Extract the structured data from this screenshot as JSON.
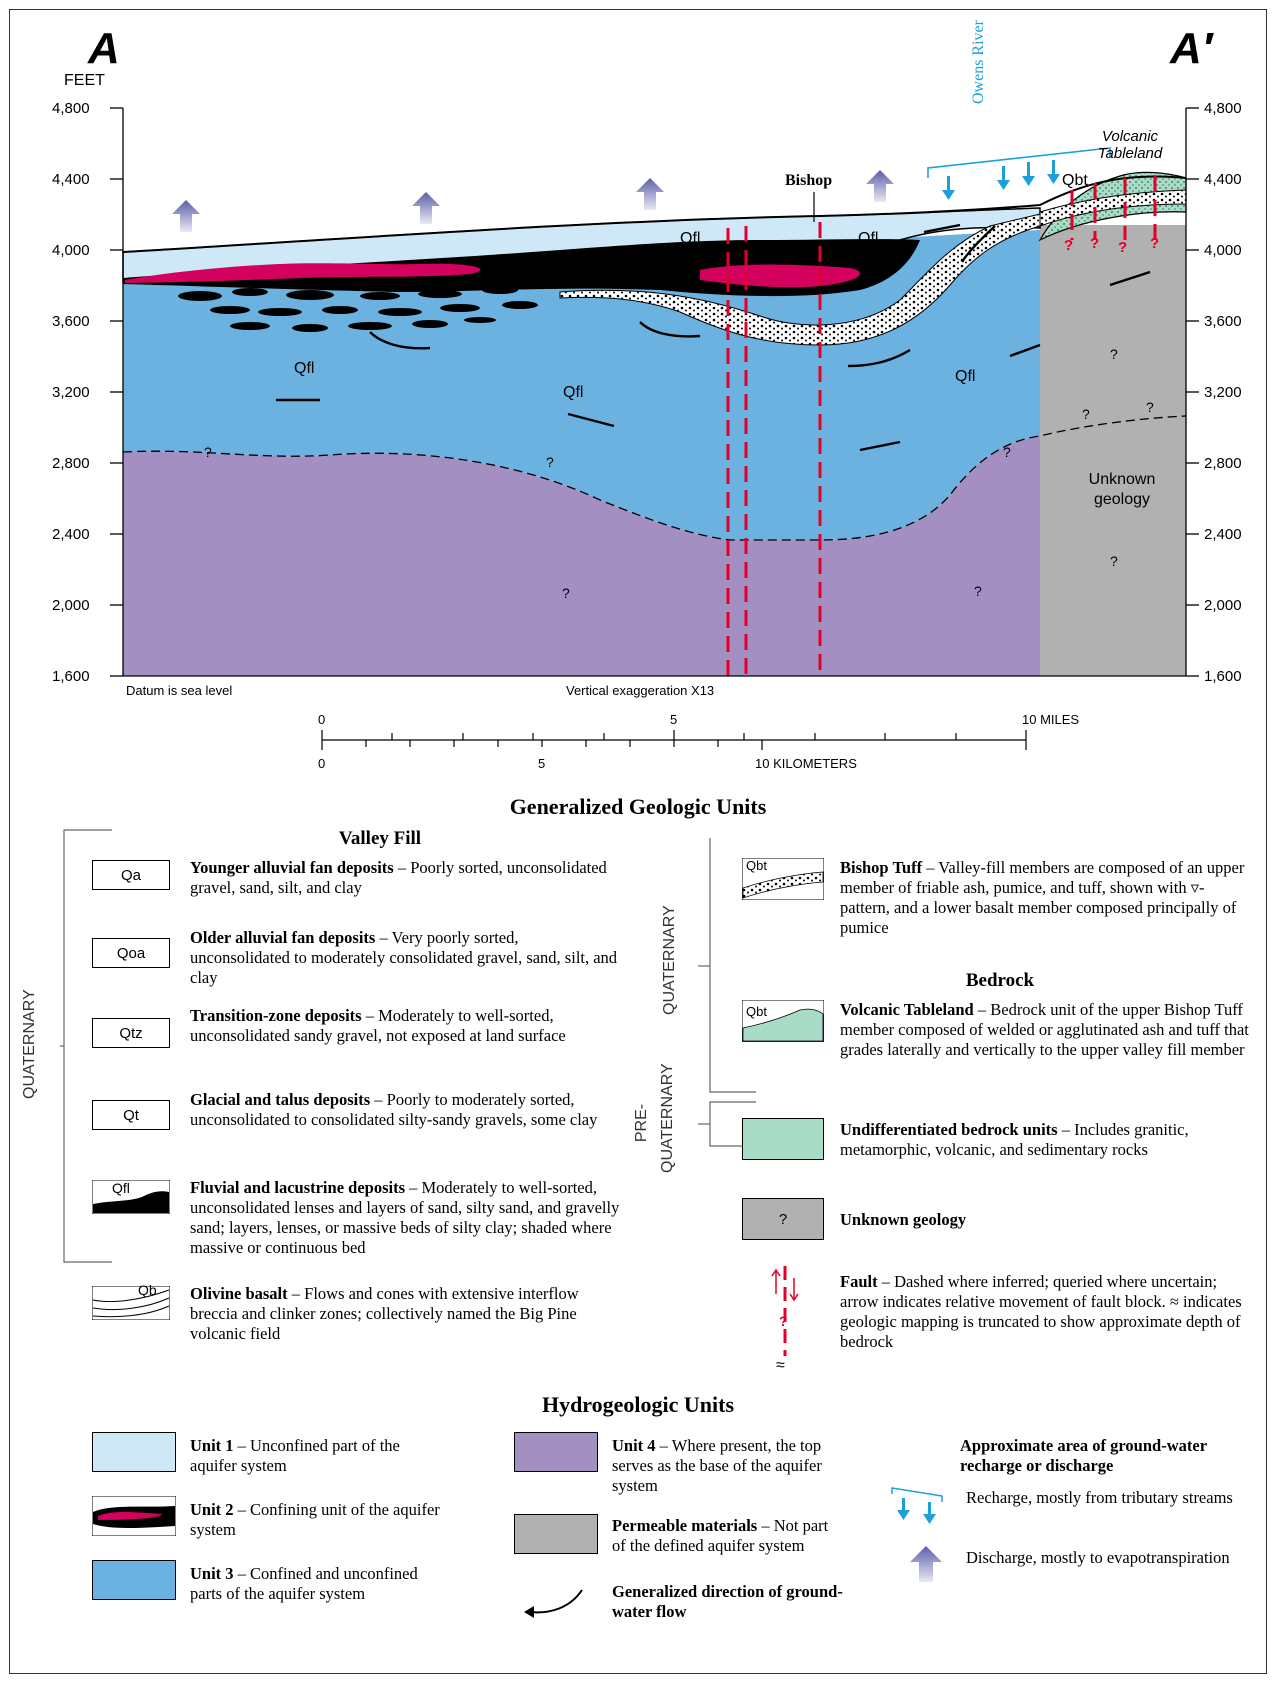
{
  "section": {
    "left_label": "A",
    "right_label": "A′",
    "axis_unit": "FEET",
    "left_ticks": [
      "4,800",
      "4,400",
      "4,000",
      "3,600",
      "3,200",
      "2,800",
      "2,400",
      "2,000",
      "1,600"
    ],
    "right_ticks": [
      "4,800",
      "4,400",
      "4,000",
      "3,600",
      "3,200",
      "2,800",
      "2,400",
      "2,000",
      "1,600"
    ],
    "owens_river": "Owens River",
    "volcanic_tableland": "Volcanic Tableland",
    "bishop": "Bishop",
    "qbt": "Qbt",
    "qfl": "Qfl",
    "unknown_geology": "Unknown geology",
    "query": "?",
    "datum": "Datum is sea level",
    "exaggeration": "Vertical exaggeration X13"
  },
  "scale": {
    "miles_labels": [
      "0",
      "5",
      "10 MILES"
    ],
    "km_labels": [
      "0",
      "5",
      "10 KILOMETERS"
    ]
  },
  "geologic": {
    "title": "Generalized Geologic Units",
    "valley_fill": "Valley Fill",
    "bedrock": "Bedrock",
    "quaternary": "QUATERNARY",
    "pre_quaternary_1": "PRE-",
    "pre_quaternary_2": "QUATERNARY",
    "units": [
      {
        "code": "Qa",
        "name": "Younger alluvial fan deposits",
        "text": " – Poorly sorted, unconsolidated gravel, sand, silt, and clay"
      },
      {
        "code": "Qoa",
        "name": "Older alluvial fan deposits",
        "text": " – Very poorly sorted, unconsolidated to moderately consolidated gravel, sand, silt, and clay"
      },
      {
        "code": "Qtz",
        "name": "Transition-zone deposits",
        "text": " – Moderately to well-sorted, unconsolidated sandy gravel, not exposed at land surface"
      },
      {
        "code": "Qt",
        "name": "Glacial and talus deposits",
        "text": " – Poorly to moderately sorted, unconsolidated to consolidated silty-sandy gravels, some clay"
      },
      {
        "code": "Qfl",
        "name": "Fluvial and lacustrine deposits",
        "text": " – Moderately to well-sorted, unconsolidated lenses and layers of sand, silty sand, and gravelly sand; layers, lenses, or massive beds of silty clay; shaded where massive or continuous bed"
      },
      {
        "code": "Qb",
        "name": "Olivine basalt",
        "text": " – Flows and cones with extensive interflow breccia and clinker zones; collectively named the Big Pine volcanic field"
      }
    ],
    "right_units": [
      {
        "code": "Qbt",
        "name": "Bishop Tuff",
        "text": " – Valley-fill members are composed of an upper member of friable ash, pumice, and tuff, shown with ▿-pattern, and a lower basalt member composed principally of pumice"
      },
      {
        "code": "Qbt",
        "name": "Volcanic Tableland",
        "text": " – Bedrock unit of the upper Bishop Tuff member composed of welded or agglutinated ash and tuff that grades laterally and vertically to the upper valley fill member"
      },
      {
        "code": "",
        "name": "Undifferentiated bedrock units",
        "text": " – Includes granitic, metamorphic, volcanic, and sedimentary rocks"
      },
      {
        "code": "?",
        "name": "Unknown geology",
        "text": ""
      }
    ],
    "fault": {
      "name": "Fault",
      "text": " – Dashed where inferred; queried where uncertain; arrow indicates relative movement of fault block. ≈ indicates geologic mapping is truncated to show approximate depth of bedrock"
    }
  },
  "hydro": {
    "title": "Hydrogeologic Units",
    "unit1": {
      "name": "Unit 1",
      "text": " – Unconfined part of the aquifer system"
    },
    "unit2": {
      "name": "Unit 2",
      "text": " – Confining unit of the aquifer system"
    },
    "unit3": {
      "name": "Unit 3",
      "text": " – Confined and unconfined parts of the aquifer system"
    },
    "unit4": {
      "name": "Unit 4",
      "text": " – Where present, the top serves as the base of the aquifer system"
    },
    "permeable": {
      "name": "Permeable materials",
      "text": " – Not part of the defined aquifer system"
    },
    "flow": "Generalized direction of ground-water flow",
    "recharge_title": "Approximate area of ground-water recharge or discharge",
    "recharge": "Recharge, mostly from tributary streams",
    "discharge": "Discharge, mostly to evapotranspiration"
  },
  "colors": {
    "unit1": "#cfe8f7",
    "unit2_red": "#d4005e",
    "unit3": "#6cb2e0",
    "unit4": "#a38fc2",
    "unknown": "#b1b1b1",
    "bedrock": "#a9dcc6",
    "fault": "#e0002a",
    "recharge": "#1aa0dd"
  }
}
